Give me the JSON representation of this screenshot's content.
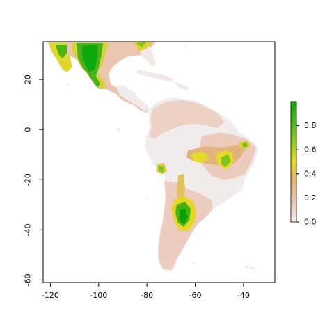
{
  "map": {
    "x_axis": {
      "min": -123,
      "max": -27,
      "ticks": [
        -120,
        -100,
        -80,
        -60,
        -40
      ],
      "tick_labels": [
        "-120",
        "-100",
        "-80",
        "-60",
        "-40"
      ]
    },
    "y_axis": {
      "min": -61,
      "max": 35,
      "ticks": [
        20,
        0,
        -20,
        -40,
        -60
      ],
      "tick_labels": [
        "20",
        "0",
        "-20",
        "-40",
        "-60"
      ]
    },
    "colors": {
      "very_low": "#f1ecec",
      "low": "#e9c7ae",
      "mid": "#e0b36c",
      "high": "#e6df2a",
      "very_high": "#58bf17",
      "max": "#05a604",
      "frame": "#000000"
    }
  },
  "legend": {
    "ticks": [
      0.0,
      0.2,
      0.4,
      0.6,
      0.8
    ],
    "tick_labels": [
      "0.0",
      "0.2",
      "0.4",
      "0.6",
      "0.8"
    ],
    "range": [
      0,
      1
    ]
  }
}
